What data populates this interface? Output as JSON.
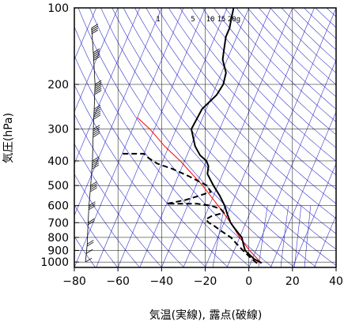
{
  "chart_data": {
    "type": "skew-t log-p diagram",
    "xlabel": "気温(実線), 露点(破線)",
    "ylabel": "気圧(hPa)",
    "x_ticks": [
      "−80",
      "−60",
      "−40",
      "−20",
      "0",
      "20",
      "40"
    ],
    "y_ticks": [
      "100",
      "200",
      "300",
      "400",
      "500",
      "600",
      "700",
      "800",
      "900",
      "1000"
    ],
    "mixing_ratio_labels": [
      "1",
      "5",
      "10",
      "15",
      "20g"
    ],
    "xlim": [
      -80,
      40
    ],
    "ylim_hpa": [
      1050,
      100
    ],
    "colors": {
      "background_lines": "#3333cc",
      "temperature": "#000000",
      "dewpoint": "#000000",
      "parcel": "#ff0000",
      "grid": "#000000"
    },
    "temperature": [
      {
        "p": 1010,
        "t": 5
      },
      {
        "p": 1000,
        "t": 4
      },
      {
        "p": 975,
        "t": 1
      },
      {
        "p": 950,
        "t": -1
      },
      {
        "p": 925,
        "t": -3
      },
      {
        "p": 900,
        "t": -5
      },
      {
        "p": 875,
        "t": -6
      },
      {
        "p": 850,
        "t": -7
      },
      {
        "p": 825,
        "t": -8
      },
      {
        "p": 800,
        "t": -9
      },
      {
        "p": 775,
        "t": -11
      },
      {
        "p": 750,
        "t": -13
      },
      {
        "p": 725,
        "t": -15
      },
      {
        "p": 700,
        "t": -17
      },
      {
        "p": 650,
        "t": -20
      },
      {
        "p": 600,
        "t": -23
      },
      {
        "p": 550,
        "t": -27
      },
      {
        "p": 500,
        "t": -32
      },
      {
        "p": 450,
        "t": -37
      },
      {
        "p": 420,
        "t": -38
      },
      {
        "p": 400,
        "t": -40
      },
      {
        "p": 380,
        "t": -44
      },
      {
        "p": 350,
        "t": -48
      },
      {
        "p": 300,
        "t": -53
      },
      {
        "p": 250,
        "t": -52
      },
      {
        "p": 220,
        "t": -48
      },
      {
        "p": 200,
        "t": -47
      },
      {
        "p": 180,
        "t": -48
      },
      {
        "p": 160,
        "t": -52
      },
      {
        "p": 150,
        "t": -53
      },
      {
        "p": 130,
        "t": -55
      },
      {
        "p": 120,
        "t": -55
      },
      {
        "p": 110,
        "t": -56
      },
      {
        "p": 100,
        "t": -57
      }
    ],
    "dewpoint": [
      {
        "p": 1010,
        "t": 3
      },
      {
        "p": 1000,
        "t": 2
      },
      {
        "p": 950,
        "t": -2
      },
      {
        "p": 900,
        "t": -6
      },
      {
        "p": 850,
        "t": -10
      },
      {
        "p": 800,
        "t": -14
      },
      {
        "p": 760,
        "t": -19
      },
      {
        "p": 720,
        "t": -24
      },
      {
        "p": 700,
        "t": -27
      },
      {
        "p": 680,
        "t": -29
      },
      {
        "p": 660,
        "t": -27
      },
      {
        "p": 640,
        "t": -22
      },
      {
        "p": 620,
        "t": -24
      },
      {
        "p": 600,
        "t": -29
      },
      {
        "p": 590,
        "t": -36
      },
      {
        "p": 590,
        "t": -50
      },
      {
        "p": 570,
        "t": -42
      },
      {
        "p": 550,
        "t": -37
      },
      {
        "p": 530,
        "t": -32
      },
      {
        "p": 500,
        "t": -35
      },
      {
        "p": 460,
        "t": -45
      },
      {
        "p": 430,
        "t": -54
      },
      {
        "p": 410,
        "t": -62
      },
      {
        "p": 390,
        "t": -67
      },
      {
        "p": 375,
        "t": -70
      },
      {
        "p": 375,
        "t": -80
      }
    ],
    "parcel": [
      {
        "p": 1010,
        "t": 5
      },
      {
        "p": 900,
        "t": -3
      },
      {
        "p": 800,
        "t": -10
      },
      {
        "p": 700,
        "t": -17
      },
      {
        "p": 600,
        "t": -26
      },
      {
        "p": 500,
        "t": -37
      },
      {
        "p": 400,
        "t": -52
      },
      {
        "p": 350,
        "t": -62
      },
      {
        "p": 300,
        "t": -72
      },
      {
        "p": 270,
        "t": -80
      }
    ],
    "dry_adiabat_theta_k": [
      190,
      200,
      210,
      220,
      230,
      240,
      250,
      260,
      270,
      280,
      290,
      300,
      310,
      320,
      330,
      340,
      350,
      360,
      370,
      380,
      390,
      400,
      410,
      420,
      430,
      440,
      450,
      460,
      470,
      480,
      490,
      500,
      520,
      540,
      560,
      580,
      600
    ],
    "isotherms_c": [
      -170,
      -160,
      -150,
      -140,
      -130,
      -120,
      -110,
      -100,
      -90,
      -80,
      -70,
      -60,
      -50,
      -40,
      -30,
      -20,
      -10,
      0,
      10,
      20,
      30,
      40
    ],
    "mixing_ratio_gkg": [
      1,
      5,
      10,
      15,
      20
    ],
    "wind_profile": [
      {
        "p": 1000,
        "ws": 5
      },
      {
        "p": 925,
        "ws": 10
      },
      {
        "p": 850,
        "ws": 15
      },
      {
        "p": 700,
        "ws": 20
      },
      {
        "p": 600,
        "ws": 25
      },
      {
        "p": 500,
        "ws": 35
      },
      {
        "p": 400,
        "ws": 45
      },
      {
        "p": 300,
        "ws": 50
      },
      {
        "p": 250,
        "ws": 55
      },
      {
        "p": 200,
        "ws": 60
      },
      {
        "p": 150,
        "ws": 50
      },
      {
        "p": 120,
        "ws": 40
      }
    ]
  }
}
